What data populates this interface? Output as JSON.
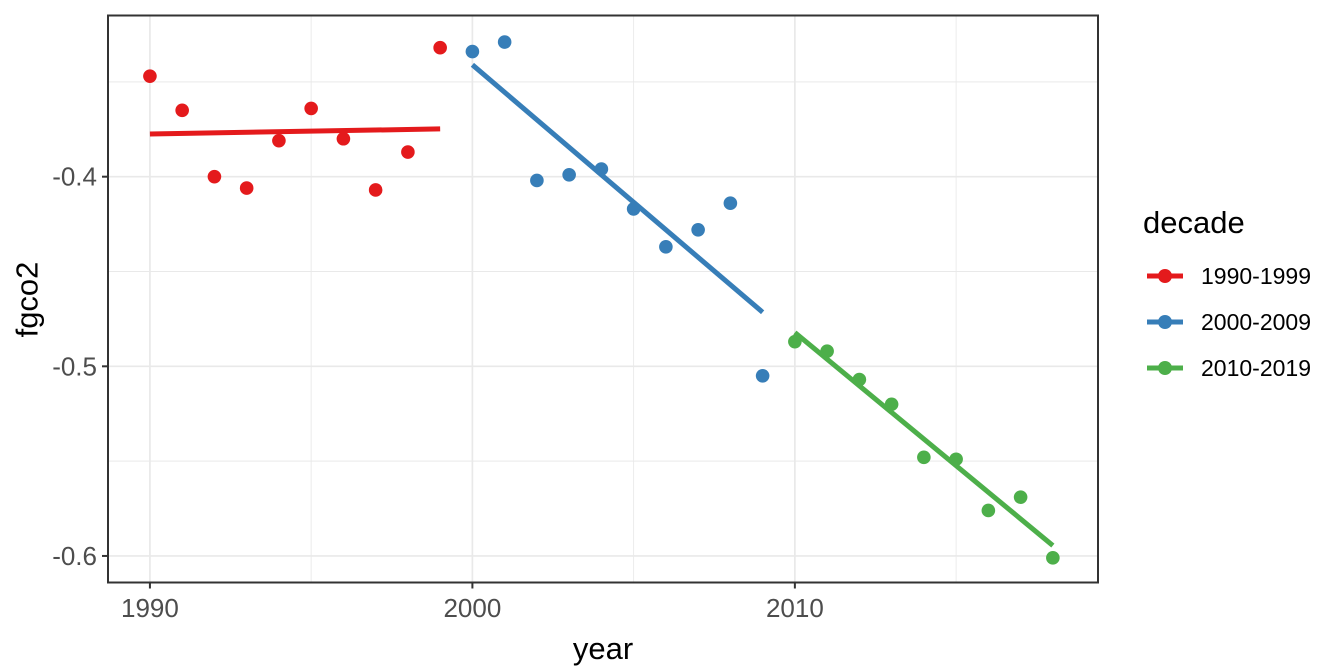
{
  "chart_data": {
    "type": "scatter",
    "title": "",
    "xlabel": "year",
    "ylabel": "fgco2",
    "xlim": [
      1988.7,
      2019.4
    ],
    "ylim": [
      -0.614,
      -0.315
    ],
    "x_major_ticks": [
      1990,
      2000,
      2010
    ],
    "x_minor_ticks": [
      1995,
      2005,
      2015
    ],
    "x_tick_labels": [
      "1990",
      "2000",
      "2010"
    ],
    "y_major_ticks": [
      -0.4,
      -0.5,
      -0.6
    ],
    "y_minor_ticks": [
      -0.35,
      -0.45,
      -0.55
    ],
    "y_tick_labels": [
      "-0.4",
      "-0.5",
      "-0.6"
    ],
    "grid": true,
    "legend_position": "right",
    "series": [
      {
        "name": "1990-1999",
        "color": "#E41A1C",
        "x": [
          1990,
          1991,
          1992,
          1993,
          1994,
          1995,
          1996,
          1997,
          1998,
          1999
        ],
        "y": [
          -0.347,
          -0.365,
          -0.4,
          -0.406,
          -0.381,
          -0.364,
          -0.38,
          -0.407,
          -0.387,
          -0.332
        ],
        "trend": {
          "x": [
            1990,
            1999
          ],
          "y": [
            -0.3775,
            -0.3748
          ]
        }
      },
      {
        "name": "2000-2009",
        "color": "#377EB8",
        "x": [
          2000,
          2001,
          2002,
          2003,
          2004,
          2005,
          2006,
          2007,
          2008,
          2009
        ],
        "y": [
          -0.334,
          -0.329,
          -0.402,
          -0.399,
          -0.396,
          -0.417,
          -0.437,
          -0.428,
          -0.414,
          -0.505
        ],
        "trend": {
          "x": [
            2000,
            2009
          ],
          "y": [
            -0.341,
            -0.4715
          ]
        }
      },
      {
        "name": "2010-2019",
        "color": "#4DAF4A",
        "x": [
          2010,
          2011,
          2012,
          2013,
          2014,
          2015,
          2016,
          2017,
          2018
        ],
        "y": [
          -0.487,
          -0.492,
          -0.507,
          -0.52,
          -0.548,
          -0.549,
          -0.576,
          -0.569,
          -0.601
        ],
        "trend": {
          "x": [
            2010,
            2018
          ],
          "y": [
            -0.4822,
            -0.5945
          ]
        }
      }
    ]
  },
  "legend": {
    "title": "decade"
  },
  "styles": {
    "background": "#FFFFFF",
    "grid_color": "#E9E9E9",
    "border_color": "#333333",
    "tick_color": "#333333",
    "tick_label_color": "#4D4D4D",
    "text_color": "#000000"
  }
}
